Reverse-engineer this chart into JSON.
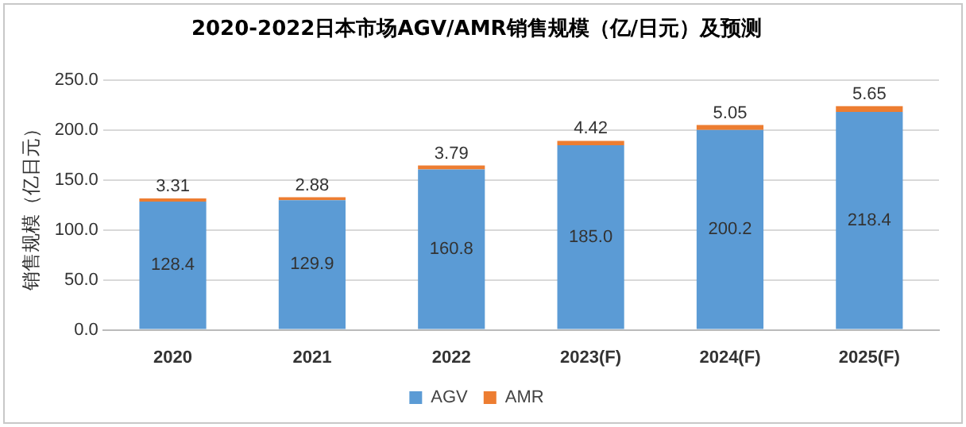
{
  "chart_data": {
    "type": "bar",
    "title": "2020-2022日本市场AGV/AMR销售规模（亿/日元）及预测",
    "ylabel": "销售规模（亿日元）",
    "categories": [
      "2020",
      "2021",
      "2022",
      "2023(F)",
      "2024(F)",
      "2025(F)"
    ],
    "series": [
      {
        "name": "AGV",
        "color": "#5b9bd5",
        "values": [
          128.4,
          129.9,
          160.8,
          185.0,
          200.2,
          218.4
        ],
        "value_labels": [
          "128.4",
          "129.9",
          "160.8",
          "185.0",
          "200.2",
          "218.4"
        ]
      },
      {
        "name": "AMR",
        "color": "#ed7d31",
        "values": [
          3.31,
          2.88,
          3.79,
          4.42,
          5.05,
          5.65
        ],
        "value_labels": [
          "3.31",
          "2.88",
          "3.79",
          "4.42",
          "5.05",
          "5.65"
        ]
      }
    ],
    "stacked": true,
    "ylim": [
      0,
      250
    ],
    "yticks": [
      {
        "value": 0,
        "label": "0.0"
      },
      {
        "value": 50,
        "label": "50.0"
      },
      {
        "value": 100,
        "label": "100.0"
      },
      {
        "value": 150,
        "label": "150.0"
      },
      {
        "value": 200,
        "label": "200.0"
      },
      {
        "value": 250,
        "label": "250.0"
      }
    ],
    "grid": "y",
    "legend": "bottom"
  }
}
